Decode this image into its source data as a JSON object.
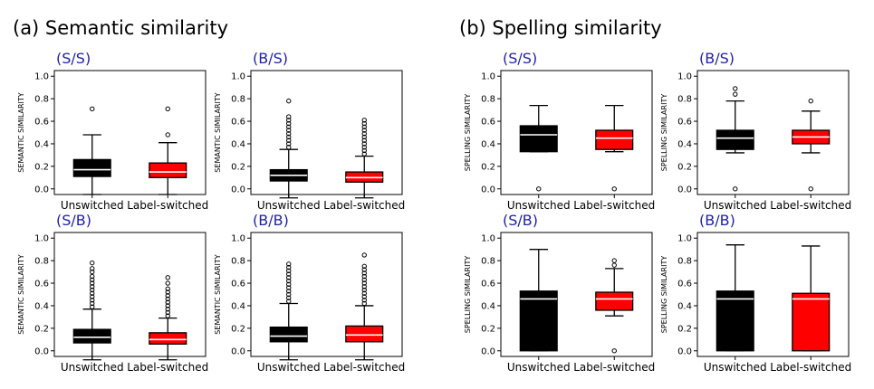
{
  "sections": [
    {
      "title": "(a) Semantic similarity"
    },
    {
      "title": "(b) Spelling similarity"
    }
  ],
  "colors": {
    "unswitched": "#000000",
    "label_switched": "#ff0000",
    "panel_label": "#1f1fa8"
  },
  "chart_data": [
    {
      "type": "box",
      "group": "(a) Semantic similarity",
      "panel": "(S/S)",
      "ylabel": "SEMANTIC SIMILARITY",
      "categories": [
        "Unswitched",
        "Label-switched"
      ],
      "ylim": [
        -0.05,
        1.05
      ],
      "yticks": [
        "0.0",
        "0.2",
        "0.4",
        "0.6",
        "0.8",
        "1.0"
      ],
      "boxes": [
        {
          "whislo": -0.05,
          "q1": 0.11,
          "med": 0.17,
          "q3": 0.26,
          "whishi": 0.48,
          "fliers": [
            0.71
          ]
        },
        {
          "whislo": -0.05,
          "q1": 0.1,
          "med": 0.15,
          "q3": 0.23,
          "whishi": 0.41,
          "fliers": [
            0.48,
            0.71
          ]
        }
      ]
    },
    {
      "type": "box",
      "group": "(a) Semantic similarity",
      "panel": "(B/S)",
      "ylabel": "SEMANTIC SIMILARITY",
      "categories": [
        "Unswitched",
        "Label-switched"
      ],
      "ylim": [
        -0.05,
        1.05
      ],
      "yticks": [
        "0.0",
        "0.2",
        "0.4",
        "0.6",
        "0.8",
        "1.0"
      ],
      "boxes": [
        {
          "whislo": -0.08,
          "q1": 0.07,
          "med": 0.12,
          "q3": 0.17,
          "whishi": 0.35,
          "fliers": [
            0.37,
            0.4,
            0.43,
            0.46,
            0.49,
            0.52,
            0.55,
            0.58,
            0.61,
            0.64,
            0.78
          ]
        },
        {
          "whislo": -0.08,
          "q1": 0.06,
          "med": 0.1,
          "q3": 0.15,
          "whishi": 0.29,
          "fliers": [
            0.31,
            0.34,
            0.37,
            0.4,
            0.43,
            0.46,
            0.49,
            0.52,
            0.55,
            0.58,
            0.61
          ]
        }
      ]
    },
    {
      "type": "box",
      "group": "(a) Semantic similarity",
      "panel": "(S/B)",
      "ylabel": "SEMANTIC SIMILARITY",
      "categories": [
        "Unswitched",
        "Label-switched"
      ],
      "ylim": [
        -0.05,
        1.05
      ],
      "yticks": [
        "0.0",
        "0.2",
        "0.4",
        "0.6",
        "0.8",
        "1.0"
      ],
      "boxes": [
        {
          "whislo": -0.08,
          "q1": 0.07,
          "med": 0.12,
          "q3": 0.19,
          "whishi": 0.37,
          "fliers": [
            0.39,
            0.42,
            0.45,
            0.48,
            0.51,
            0.54,
            0.57,
            0.6,
            0.63,
            0.66,
            0.7,
            0.73,
            0.78
          ]
        },
        {
          "whislo": -0.08,
          "q1": 0.06,
          "med": 0.1,
          "q3": 0.16,
          "whishi": 0.29,
          "fliers": [
            0.31,
            0.34,
            0.37,
            0.4,
            0.43,
            0.46,
            0.49,
            0.52,
            0.55,
            0.6,
            0.65
          ]
        }
      ]
    },
    {
      "type": "box",
      "group": "(a) Semantic similarity",
      "panel": "(B/B)",
      "ylabel": "SEMANTIC SIMILARITY",
      "categories": [
        "Unswitched",
        "Label-switched"
      ],
      "ylim": [
        -0.05,
        1.05
      ],
      "yticks": [
        "0.0",
        "0.2",
        "0.4",
        "0.6",
        "0.8",
        "1.0"
      ],
      "boxes": [
        {
          "whislo": -0.08,
          "q1": 0.08,
          "med": 0.13,
          "q3": 0.21,
          "whishi": 0.42,
          "fliers": [
            0.44,
            0.47,
            0.5,
            0.53,
            0.56,
            0.59,
            0.62,
            0.65,
            0.68,
            0.71,
            0.74,
            0.77
          ]
        },
        {
          "whislo": -0.08,
          "q1": 0.08,
          "med": 0.14,
          "q3": 0.22,
          "whishi": 0.4,
          "fliers": [
            0.42,
            0.45,
            0.48,
            0.51,
            0.54,
            0.57,
            0.6,
            0.63,
            0.66,
            0.69,
            0.72,
            0.75,
            0.85
          ]
        }
      ]
    },
    {
      "type": "box",
      "group": "(b) Spelling similarity",
      "panel": "(S/S)",
      "ylabel": "SPELLING SIMILARITY",
      "categories": [
        "Unswitched",
        "Label-switched"
      ],
      "ylim": [
        -0.05,
        1.05
      ],
      "yticks": [
        "0.0",
        "0.2",
        "0.4",
        "0.6",
        "0.8",
        "1.0"
      ],
      "boxes": [
        {
          "whislo": 0.33,
          "q1": 0.33,
          "med": 0.48,
          "q3": 0.56,
          "whishi": 0.74,
          "fliers": [
            0.0
          ]
        },
        {
          "whislo": 0.33,
          "q1": 0.35,
          "med": 0.45,
          "q3": 0.52,
          "whishi": 0.74,
          "fliers": [
            0.0
          ]
        }
      ]
    },
    {
      "type": "box",
      "group": "(b) Spelling similarity",
      "panel": "(B/S)",
      "ylabel": "SPELLING SIMILARITY",
      "categories": [
        "Unswitched",
        "Label-switched"
      ],
      "ylim": [
        -0.05,
        1.05
      ],
      "yticks": [
        "0.0",
        "0.2",
        "0.4",
        "0.6",
        "0.8",
        "1.0"
      ],
      "boxes": [
        {
          "whislo": 0.32,
          "q1": 0.35,
          "med": 0.45,
          "q3": 0.52,
          "whishi": 0.78,
          "fliers": [
            0.0,
            0.84,
            0.89
          ]
        },
        {
          "whislo": 0.32,
          "q1": 0.4,
          "med": 0.46,
          "q3": 0.52,
          "whishi": 0.69,
          "fliers": [
            0.0,
            0.78
          ]
        }
      ]
    },
    {
      "type": "box",
      "group": "(b) Spelling similarity",
      "panel": "(S/B)",
      "ylabel": "SPELLING SIMILARITY",
      "categories": [
        "Unswitched",
        "Label-switched"
      ],
      "ylim": [
        -0.05,
        1.05
      ],
      "yticks": [
        "0.0",
        "0.2",
        "0.4",
        "0.6",
        "0.8",
        "1.0"
      ],
      "boxes": [
        {
          "whislo": 0.0,
          "q1": 0.0,
          "med": 0.46,
          "q3": 0.53,
          "whishi": 0.9,
          "fliers": []
        },
        {
          "whislo": 0.31,
          "q1": 0.36,
          "med": 0.46,
          "q3": 0.52,
          "whishi": 0.73,
          "fliers": [
            0.0,
            0.76,
            0.8
          ]
        }
      ]
    },
    {
      "type": "box",
      "group": "(b) Spelling similarity",
      "panel": "(B/B)",
      "ylabel": "SPELLING SIMILARITY",
      "categories": [
        "Unswitched",
        "Label-switched"
      ],
      "ylim": [
        -0.05,
        1.05
      ],
      "yticks": [
        "0.0",
        "0.2",
        "0.4",
        "0.6",
        "0.8",
        "1.0"
      ],
      "boxes": [
        {
          "whislo": 0.0,
          "q1": 0.0,
          "med": 0.46,
          "q3": 0.53,
          "whishi": 0.94,
          "fliers": []
        },
        {
          "whislo": 0.0,
          "q1": 0.0,
          "med": 0.46,
          "q3": 0.51,
          "whishi": 0.93,
          "fliers": []
        }
      ]
    }
  ]
}
